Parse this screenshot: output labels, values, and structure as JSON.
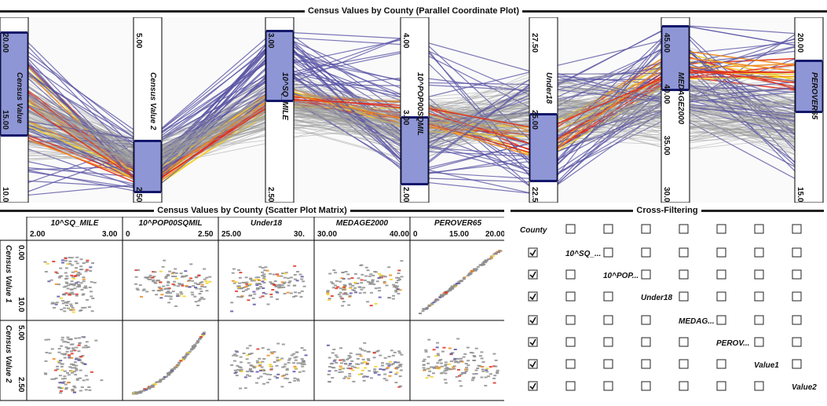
{
  "pcp": {
    "title": "Census Values by County (Parallel Coordinate Plot)",
    "axes": [
      {
        "label": "Census Value",
        "ticks": [
          "20.00",
          "15.00",
          "10.00"
        ]
      },
      {
        "label": "Census Value 2",
        "ticks": [
          "5.00",
          "2.50"
        ]
      },
      {
        "label": "10^SQ_MILE",
        "ticks": [
          "3.00",
          "2.50"
        ]
      },
      {
        "label": "10^POP00SQMIL",
        "ticks": [
          "4.00",
          "3.00",
          "2.00"
        ]
      },
      {
        "label": "Under18",
        "ticks": [
          "27.50",
          "25.00",
          "22.50"
        ]
      },
      {
        "label": "MEDAGE2000",
        "ticks": [
          "45.00",
          "40.00",
          "35.00",
          "30.00"
        ]
      },
      {
        "label": "PEROVER65",
        "ticks": [
          "20.00",
          "15.00"
        ]
      }
    ],
    "colors": {
      "context": "#9a9a9a",
      "selected": "#5a55a5",
      "highlight_red": "#e0301e",
      "highlight_orange": "#f08a1c",
      "highlight_yellow": "#f3d027",
      "brush": "#8e96d6"
    }
  },
  "spm": {
    "title": "Census Values by County (Scatter Plot Matrix)",
    "columns": [
      {
        "label": "10^SQ_MILE",
        "ticks": [
          "2.00",
          "3.00"
        ]
      },
      {
        "label": "10^POP00SQMIL",
        "ticks": [
          "0",
          "2.50"
        ]
      },
      {
        "label": "Under18",
        "ticks": [
          "25.00",
          "30."
        ]
      },
      {
        "label": "MEDAGE2000",
        "ticks": [
          "30.00",
          "40.00"
        ]
      },
      {
        "label": "PEROVER65",
        "ticks": [
          "0",
          "15.00",
          "20.00"
        ]
      }
    ],
    "rows": [
      {
        "label": "Census Value 1",
        "ticks": [
          "0.00",
          "10.0"
        ]
      },
      {
        "label": "Census Value 2",
        "ticks": [
          "5.00",
          "2.50"
        ]
      }
    ]
  },
  "crossfilter": {
    "title": "Cross-Filtering",
    "header": "County",
    "rows": [
      {
        "label": "10^SQ_..."
      },
      {
        "label": "10^POP..."
      },
      {
        "label": "Under18"
      },
      {
        "label": "MEDAG..."
      },
      {
        "label": "PEROV..."
      },
      {
        "label": "Value1"
      },
      {
        "label": "Value2"
      }
    ]
  }
}
